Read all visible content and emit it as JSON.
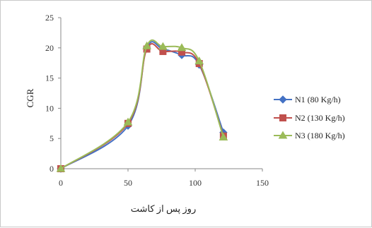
{
  "chart_data": {
    "type": "line",
    "title": "",
    "xlabel": "روز پس از کاشت",
    "ylabel": "CGR",
    "xlim": [
      0,
      150
    ],
    "ylim": [
      0,
      25
    ],
    "xticks": [
      "0",
      "50",
      "100",
      "150"
    ],
    "yticks": [
      "0",
      "5",
      "10",
      "15",
      "20",
      "25"
    ],
    "grid": false,
    "legend_position": "right",
    "series": [
      {
        "name": "N1 (80 Kg/h)",
        "color": "#4472c4",
        "marker": "diamond",
        "x": [
          0,
          50,
          64,
          76,
          90,
          103,
          121
        ],
        "y": [
          0,
          7.1,
          20.0,
          19.8,
          18.8,
          17.2,
          6.0
        ]
      },
      {
        "name": "N2 (130 Kg/h)",
        "color": "#c0504d",
        "marker": "square",
        "x": [
          0,
          50,
          64,
          76,
          90,
          103,
          121
        ],
        "y": [
          0,
          7.5,
          19.8,
          19.4,
          19.3,
          17.4,
          5.4
        ]
      },
      {
        "name": "N3 (180 Kg/h)",
        "color": "#9bbb59",
        "marker": "triangle",
        "x": [
          0,
          50,
          64,
          76,
          90,
          103,
          121
        ],
        "y": [
          0,
          7.7,
          20.3,
          20.2,
          20.0,
          17.8,
          5.2
        ]
      }
    ]
  }
}
